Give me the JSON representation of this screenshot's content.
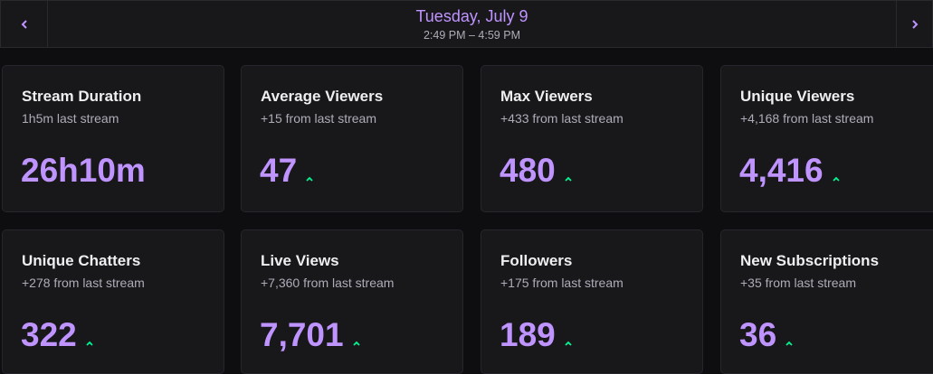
{
  "header": {
    "date": "Tuesday, July 9",
    "time_range": "2:49 PM – 4:59 PM"
  },
  "icons": {
    "prev": "chevron-left-icon",
    "next": "chevron-right-icon",
    "trend_up": "chevron-up-icon"
  },
  "colors": {
    "accent": "#bf94ff",
    "trend_up": "#00f593",
    "background": "#0e0e10",
    "card": "#18181b"
  },
  "stats": [
    {
      "title": "Stream Duration",
      "subtitle": "1h5m last stream",
      "value": "26h10m",
      "trend": ""
    },
    {
      "title": "Average Viewers",
      "subtitle": "+15 from last stream",
      "value": "47",
      "trend": "up"
    },
    {
      "title": "Max Viewers",
      "subtitle": "+433 from last stream",
      "value": "480",
      "trend": "up"
    },
    {
      "title": "Unique Viewers",
      "subtitle": "+4,168 from last stream",
      "value": "4,416",
      "trend": "up"
    },
    {
      "title": "Unique Chatters",
      "subtitle": "+278 from last stream",
      "value": "322",
      "trend": "up"
    },
    {
      "title": "Live Views",
      "subtitle": "+7,360 from last stream",
      "value": "7,701",
      "trend": "up"
    },
    {
      "title": "Followers",
      "subtitle": "+175 from last stream",
      "value": "189",
      "trend": "up"
    },
    {
      "title": "New Subscriptions",
      "subtitle": "+35 from last stream",
      "value": "36",
      "trend": "up"
    }
  ]
}
